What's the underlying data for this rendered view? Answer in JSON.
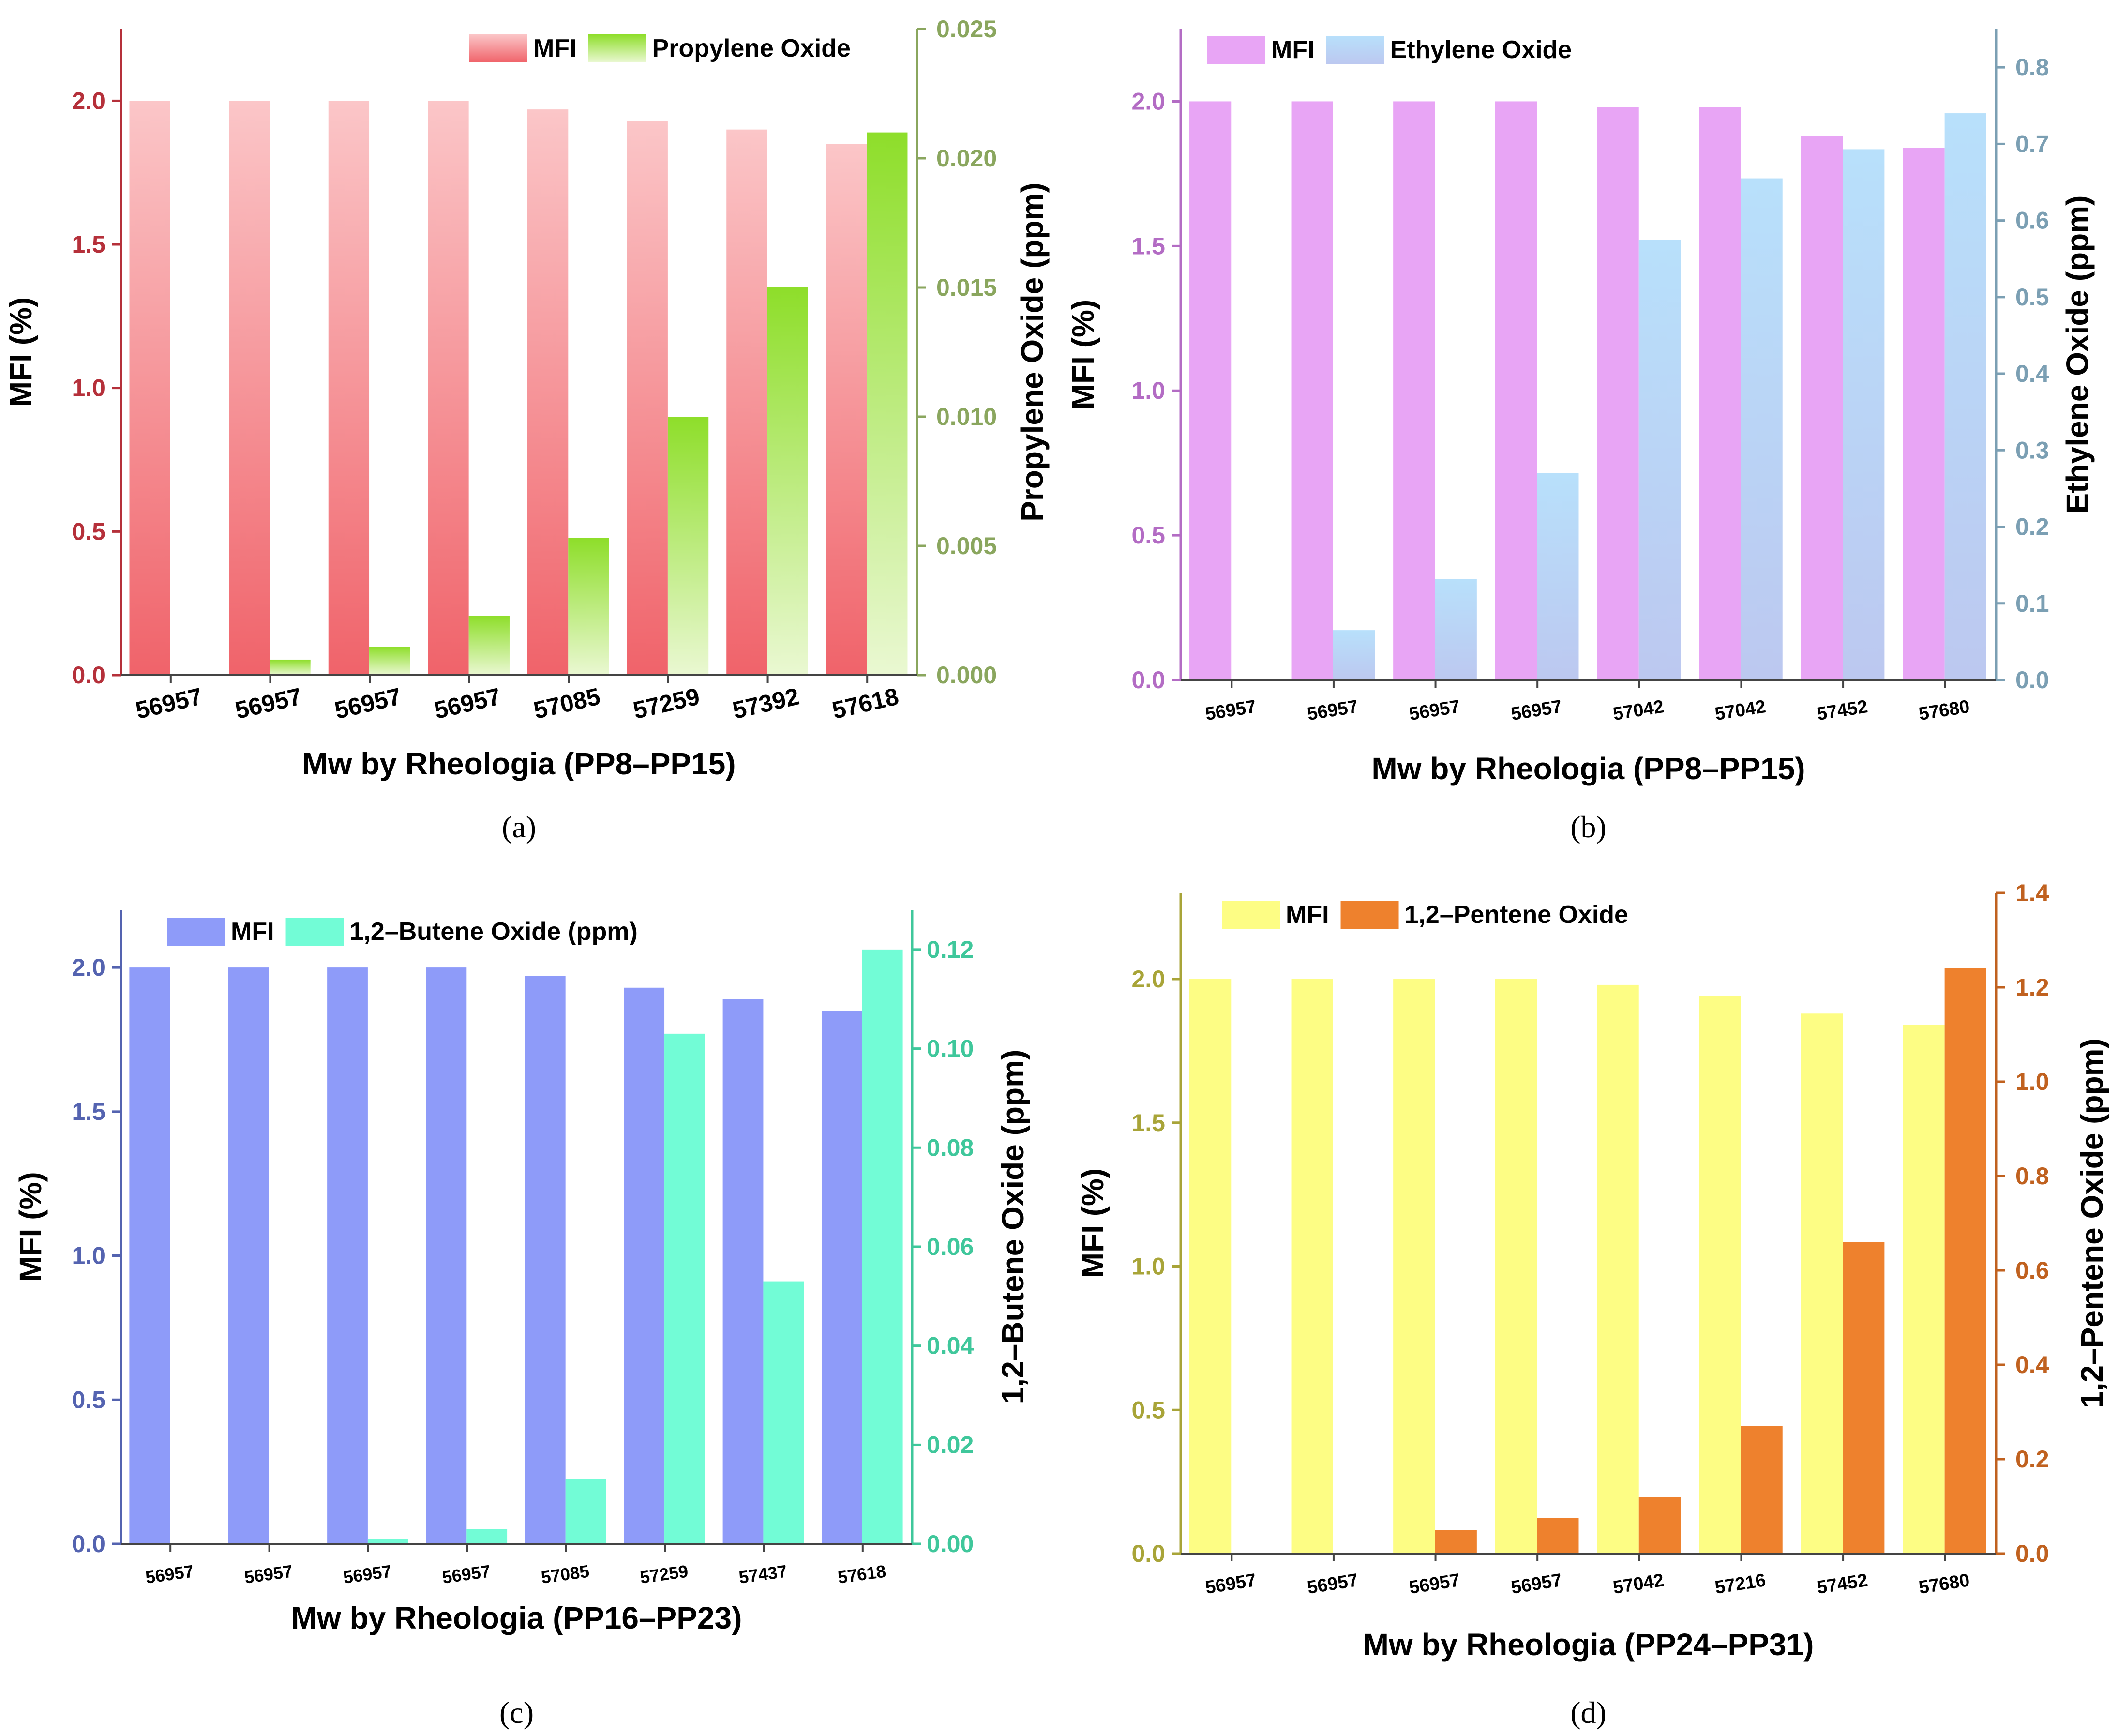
{
  "chart_data": [
    {
      "panel_id": "a",
      "type": "bar",
      "caption": "(a)",
      "xlabel": "Mw by Rheologia (PP8–PP15)",
      "categories": [
        "56957",
        "56957",
        "56957",
        "56957",
        "57085",
        "57259",
        "57392",
        "57618"
      ],
      "legend_position": "top-center",
      "y_left": {
        "label": "MFI (%)",
        "lim": [
          0,
          2.25
        ],
        "ticks": [
          "0.0",
          "0.5",
          "1.0",
          "1.5",
          "2.0"
        ],
        "tick_values": [
          0,
          0.5,
          1.0,
          1.5,
          2.0
        ],
        "color": "#b5303a"
      },
      "y_right": {
        "label": "Propylene Oxide (ppm)",
        "lim": [
          0,
          0.025
        ],
        "ticks": [
          "0.000",
          "0.005",
          "0.010",
          "0.015",
          "0.020",
          "0.025"
        ],
        "tick_values": [
          0,
          0.005,
          0.01,
          0.015,
          0.02,
          0.025
        ],
        "color": "#8aa65e"
      },
      "series": [
        {
          "name": "MFI",
          "axis": "left",
          "values": [
            2.0,
            2.0,
            2.0,
            2.0,
            1.97,
            1.93,
            1.9,
            1.85
          ],
          "color_top": "#fbc6c8",
          "color_bottom": "#f0636a"
        },
        {
          "name": "Propylene Oxide",
          "axis": "right",
          "values": [
            0,
            0.0006,
            0.0011,
            0.0023,
            0.0053,
            0.01,
            0.015,
            0.021
          ],
          "color_top": "#8ede2a",
          "color_bottom": "#eaf8d2"
        }
      ]
    },
    {
      "panel_id": "b",
      "type": "bar",
      "caption": "(b)",
      "xlabel": "Mw by Rheologia (PP8–PP15)",
      "categories": [
        "56957",
        "56957",
        "56957",
        "56957",
        "57042",
        "57042",
        "57452",
        "57680"
      ],
      "legend_position": "top-left",
      "y_left": {
        "label": "MFI (%)",
        "lim": [
          0,
          2.25
        ],
        "ticks": [
          "0.0",
          "0.5",
          "1.0",
          "1.5",
          "2.0"
        ],
        "tick_values": [
          0,
          0.5,
          1.0,
          1.5,
          2.0
        ],
        "color": "#b36cc4"
      },
      "y_right": {
        "label": "Ethylene Oxide (ppm)",
        "lim": [
          0,
          0.85
        ],
        "ticks": [
          "0.0",
          "0.1",
          "0.2",
          "0.3",
          "0.4",
          "0.5",
          "0.6",
          "0.7",
          "0.8"
        ],
        "tick_values": [
          0,
          0.1,
          0.2,
          0.3,
          0.4,
          0.5,
          0.6,
          0.7,
          0.8
        ],
        "color": "#7b9fb3"
      },
      "series": [
        {
          "name": "MFI",
          "axis": "left",
          "values": [
            2.0,
            2.0,
            2.0,
            2.0,
            1.98,
            1.98,
            1.88,
            1.84
          ],
          "color_top": "#e8a5f5",
          "color_bottom": "#e8a5f5"
        },
        {
          "name": "Ethylene Oxide",
          "axis": "right",
          "values": [
            0,
            0.065,
            0.132,
            0.27,
            0.575,
            0.655,
            0.693,
            0.74
          ],
          "color_top": "#b8e0fb",
          "color_bottom": "#bcc8f0"
        }
      ]
    },
    {
      "panel_id": "c",
      "type": "bar",
      "caption": "(c)",
      "xlabel": "Mw by Rheologia (PP16–PP23)",
      "categories": [
        "56957",
        "56957",
        "56957",
        "56957",
        "57085",
        "57259",
        "57437",
        "57618"
      ],
      "legend_position": "top-left",
      "y_left": {
        "label": "MFI (%)",
        "lim": [
          0,
          2.2
        ],
        "ticks": [
          "0.0",
          "0.5",
          "1.0",
          "1.5",
          "2.0"
        ],
        "tick_values": [
          0,
          0.5,
          1.0,
          1.5,
          2.0
        ],
        "color": "#5463b0"
      },
      "y_right": {
        "label": "1,2–Butene Oxide (ppm)",
        "lim": [
          0,
          0.128
        ],
        "ticks": [
          "0.00",
          "0.02",
          "0.04",
          "0.06",
          "0.08",
          "0.10",
          "0.12"
        ],
        "tick_values": [
          0,
          0.02,
          0.04,
          0.06,
          0.08,
          0.1,
          0.12
        ],
        "color": "#3fc79b"
      },
      "series": [
        {
          "name": "MFI",
          "axis": "left",
          "values": [
            2.0,
            2.0,
            2.0,
            2.0,
            1.97,
            1.93,
            1.89,
            1.85
          ],
          "color_top": "#8e9bf9",
          "color_bottom": "#8e9bf9"
        },
        {
          "name": "1,2–Butene Oxide (ppm)",
          "axis": "right",
          "values": [
            0,
            0,
            0.001,
            0.003,
            0.013,
            0.103,
            0.053,
            0.12
          ],
          "color_top": "#72fcd6",
          "color_bottom": "#72fcd6"
        }
      ]
    },
    {
      "panel_id": "d",
      "type": "bar",
      "caption": "(d)",
      "xlabel": "Mw by Rheologia (PP24–PP31)",
      "categories": [
        "56957",
        "56957",
        "56957",
        "56957",
        "57042",
        "57216",
        "57452",
        "57680"
      ],
      "legend_position": "top-left",
      "y_left": {
        "label": "MFI (%)",
        "lim": [
          0,
          2.3
        ],
        "ticks": [
          "0.0",
          "0.5",
          "1.0",
          "1.5",
          "2.0"
        ],
        "tick_values": [
          0,
          0.5,
          1.0,
          1.5,
          2.0
        ],
        "color": "#a8a438"
      },
      "y_right": {
        "label": "1,2–Pentene Oxide (ppm)",
        "lim": [
          0,
          1.4
        ],
        "ticks": [
          "0.0",
          "0.2",
          "0.4",
          "0.6",
          "0.8",
          "1.0",
          "1.2",
          "1.4"
        ],
        "tick_values": [
          0,
          0.2,
          0.4,
          0.6,
          0.8,
          1.0,
          1.2,
          1.4
        ],
        "color": "#c0611f"
      },
      "series": [
        {
          "name": "MFI",
          "axis": "left",
          "values": [
            2.0,
            2.0,
            2.0,
            2.0,
            1.98,
            1.94,
            1.88,
            1.84
          ],
          "color_top": "#fdfd84",
          "color_bottom": "#fdfd84"
        },
        {
          "name": "1,2–Pentene Oxide",
          "axis": "right",
          "values": [
            0,
            0,
            0.05,
            0.075,
            0.12,
            0.27,
            0.66,
            1.24
          ],
          "color_top": "#ee812d",
          "color_bottom": "#ee812d"
        }
      ]
    }
  ]
}
